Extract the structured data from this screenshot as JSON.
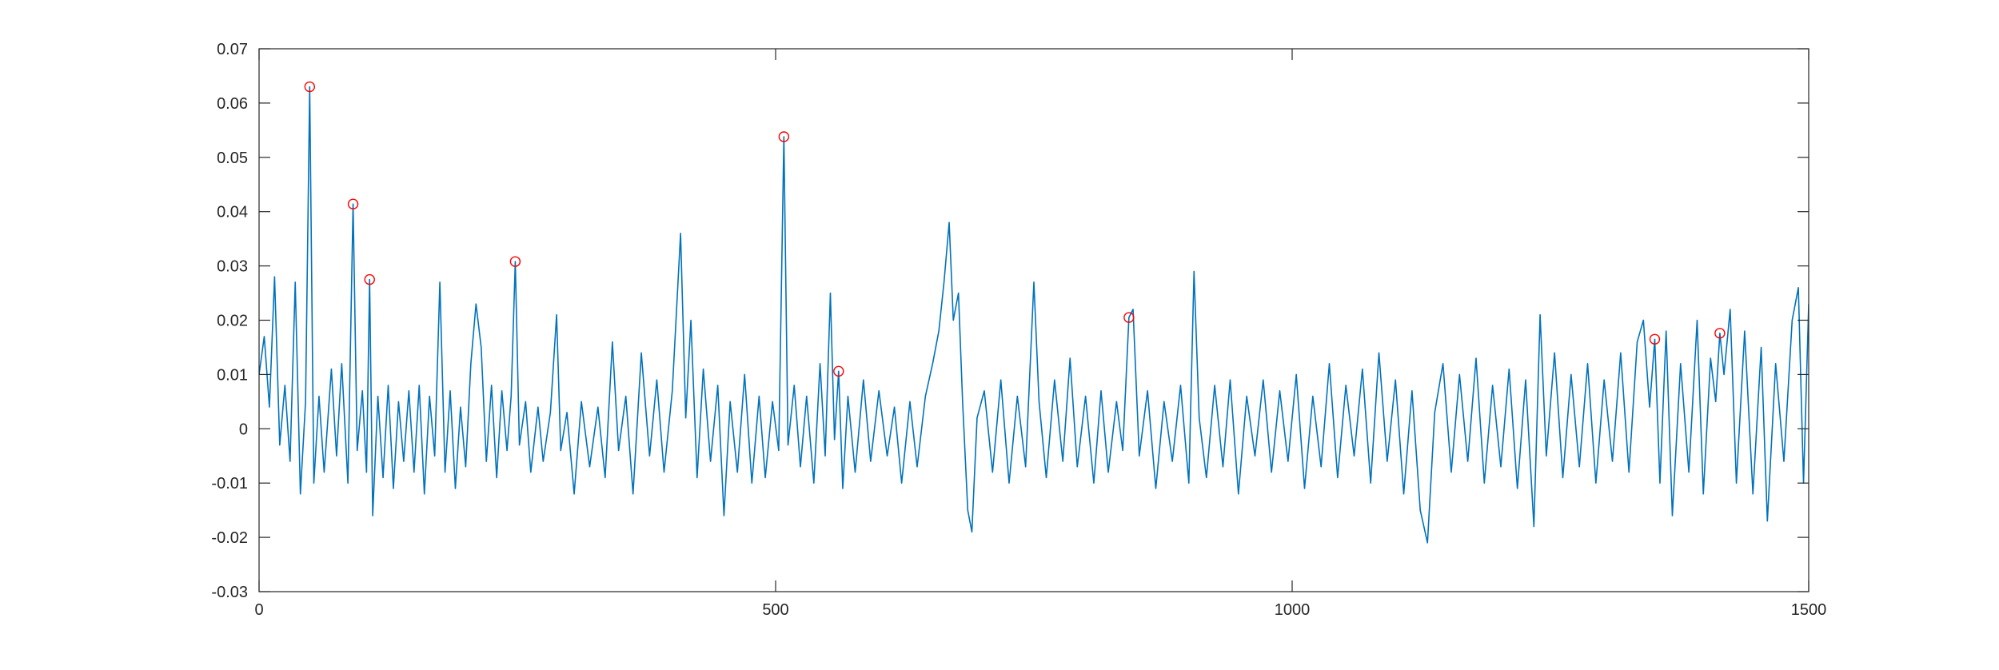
{
  "chart_data": {
    "type": "line",
    "xlim": [
      0,
      1500
    ],
    "xticks": [
      0,
      500,
      1000,
      1500
    ],
    "ylim": [
      -0.03,
      0.07
    ],
    "yticks": [
      -0.03,
      -0.02,
      -0.01,
      0,
      0.01,
      0.02,
      0.03,
      0.04,
      0.05,
      0.06,
      0.07
    ],
    "series": [
      {
        "type": "line",
        "color": "#0072bd",
        "x": [
          0,
          5,
          10,
          15,
          20,
          25,
          30,
          35,
          40,
          45,
          49,
          53,
          58,
          63,
          70,
          75,
          80,
          86,
          91,
          95,
          100,
          104,
          107,
          110,
          115,
          120,
          125,
          130,
          135,
          140,
          145,
          150,
          155,
          160,
          165,
          170,
          175,
          180,
          185,
          190,
          195,
          200,
          205,
          210,
          215,
          220,
          225,
          230,
          235,
          240,
          244,
          248,
          252,
          258,
          263,
          270,
          275,
          282,
          288,
          292,
          298,
          305,
          312,
          320,
          328,
          335,
          342,
          348,
          355,
          362,
          370,
          378,
          385,
          392,
          400,
          408,
          413,
          418,
          424,
          430,
          437,
          444,
          450,
          456,
          463,
          470,
          477,
          484,
          490,
          497,
          503,
          508,
          512,
          518,
          524,
          530,
          537,
          543,
          548,
          553,
          557,
          561,
          565,
          570,
          577,
          585,
          592,
          600,
          608,
          615,
          622,
          630,
          637,
          645,
          652,
          658,
          663,
          668,
          672,
          677,
          681,
          686,
          690,
          695,
          702,
          710,
          718,
          726,
          734,
          742,
          750,
          755,
          762,
          770,
          778,
          785,
          792,
          800,
          808,
          815,
          822,
          830,
          836,
          842,
          846,
          852,
          860,
          868,
          876,
          884,
          892,
          900,
          905,
          910,
          917,
          925,
          933,
          940,
          948,
          956,
          964,
          972,
          980,
          988,
          996,
          1004,
          1012,
          1020,
          1028,
          1036,
          1044,
          1052,
          1060,
          1068,
          1076,
          1084,
          1092,
          1100,
          1108,
          1116,
          1124,
          1131,
          1138,
          1146,
          1154,
          1162,
          1170,
          1178,
          1186,
          1194,
          1202,
          1210,
          1218,
          1226,
          1234,
          1240,
          1246,
          1254,
          1262,
          1270,
          1278,
          1286,
          1294,
          1302,
          1310,
          1318,
          1326,
          1334,
          1340,
          1346,
          1351,
          1356,
          1362,
          1368,
          1376,
          1384,
          1392,
          1398,
          1405,
          1410,
          1414,
          1418,
          1424,
          1430,
          1438,
          1446,
          1454,
          1460,
          1468,
          1476,
          1484,
          1490,
          1495,
          1500
        ],
        "values": [
          0.01,
          0.017,
          0.004,
          0.028,
          -0.003,
          0.008,
          -0.006,
          0.027,
          -0.012,
          0.005,
          0.063,
          -0.01,
          0.006,
          -0.008,
          0.011,
          -0.005,
          0.012,
          -0.01,
          0.0414,
          -0.004,
          0.007,
          -0.008,
          0.0275,
          -0.016,
          0.006,
          -0.009,
          0.008,
          -0.011,
          0.005,
          -0.006,
          0.007,
          -0.008,
          0.008,
          -0.012,
          0.006,
          -0.005,
          0.027,
          -0.008,
          0.007,
          -0.011,
          0.004,
          -0.007,
          0.012,
          0.023,
          0.015,
          -0.006,
          0.008,
          -0.009,
          0.007,
          -0.004,
          0.006,
          0.0308,
          -0.003,
          0.005,
          -0.008,
          0.004,
          -0.006,
          0.003,
          0.021,
          -0.004,
          0.003,
          -0.012,
          0.005,
          -0.007,
          0.004,
          -0.009,
          0.016,
          -0.004,
          0.006,
          -0.012,
          0.014,
          -0.005,
          0.009,
          -0.008,
          0.007,
          0.036,
          0.002,
          0.02,
          -0.009,
          0.011,
          -0.006,
          0.008,
          -0.016,
          0.005,
          -0.008,
          0.01,
          -0.01,
          0.006,
          -0.009,
          0.005,
          -0.004,
          0.0538,
          -0.003,
          0.008,
          -0.007,
          0.006,
          -0.01,
          0.012,
          -0.005,
          0.025,
          -0.002,
          0.0106,
          -0.011,
          0.006,
          -0.008,
          0.009,
          -0.006,
          0.007,
          -0.005,
          0.004,
          -0.01,
          0.005,
          -0.007,
          0.006,
          0.012,
          0.018,
          0.027,
          0.038,
          0.02,
          0.025,
          0.005,
          -0.015,
          -0.019,
          0.002,
          0.007,
          -0.008,
          0.009,
          -0.01,
          0.006,
          -0.007,
          0.027,
          0.005,
          -0.009,
          0.009,
          -0.006,
          0.013,
          -0.007,
          0.006,
          -0.01,
          0.007,
          -0.008,
          0.005,
          -0.004,
          0.0205,
          0.022,
          -0.005,
          0.007,
          -0.011,
          0.005,
          -0.006,
          0.008,
          -0.01,
          0.029,
          0.002,
          -0.009,
          0.008,
          -0.007,
          0.009,
          -0.012,
          0.006,
          -0.005,
          0.009,
          -0.008,
          0.007,
          -0.006,
          0.01,
          -0.011,
          0.006,
          -0.007,
          0.012,
          -0.009,
          0.008,
          -0.005,
          0.011,
          -0.01,
          0.014,
          -0.006,
          0.009,
          -0.012,
          0.007,
          -0.015,
          -0.021,
          0.003,
          0.012,
          -0.008,
          0.01,
          -0.006,
          0.013,
          -0.01,
          0.008,
          -0.007,
          0.011,
          -0.011,
          0.009,
          -0.018,
          0.021,
          -0.005,
          0.014,
          -0.009,
          0.01,
          -0.007,
          0.012,
          -0.01,
          0.009,
          -0.006,
          0.014,
          -0.008,
          0.016,
          0.02,
          0.004,
          0.0165,
          -0.01,
          0.018,
          -0.016,
          0.012,
          -0.008,
          0.02,
          -0.012,
          0.013,
          0.005,
          0.0176,
          0.01,
          0.022,
          -0.01,
          0.018,
          -0.012,
          0.015,
          -0.017,
          0.012,
          -0.006,
          0.02,
          0.026,
          -0.01,
          0.023
        ]
      },
      {
        "type": "scatter",
        "marker": "circle",
        "color": "#ff0000",
        "x": [
          49,
          91,
          107,
          248,
          508,
          561,
          842,
          1351,
          1414
        ],
        "values": [
          0.063,
          0.0414,
          0.0275,
          0.0308,
          0.0538,
          0.0106,
          0.0205,
          0.0165,
          0.0176
        ]
      }
    ]
  }
}
